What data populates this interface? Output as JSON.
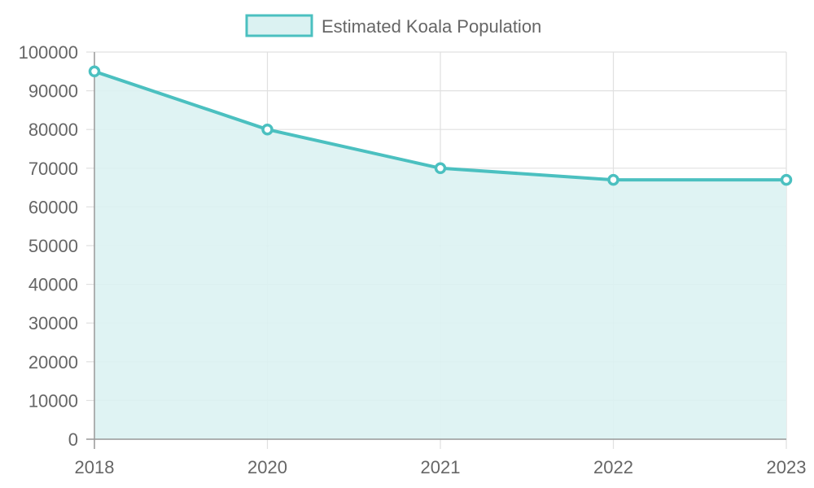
{
  "chart_data": {
    "type": "area",
    "categories": [
      "2018",
      "2020",
      "2021",
      "2022",
      "2023"
    ],
    "series": [
      {
        "name": "Estimated Koala Population",
        "values": [
          95000,
          80000,
          70000,
          67000,
          67000
        ]
      }
    ],
    "title": "",
    "xlabel": "",
    "ylabel": "",
    "ylim": [
      0,
      100000
    ],
    "yticks": [
      "0",
      "10000",
      "20000",
      "30000",
      "40000",
      "50000",
      "60000",
      "70000",
      "80000",
      "90000",
      "100000"
    ],
    "grid": true,
    "legend": "top-center",
    "colors": {
      "line": "#4bc0c0",
      "fill": "#dbf2f2",
      "grid": "#e0e0e0",
      "axis": "#999999",
      "text": "#666666"
    }
  }
}
